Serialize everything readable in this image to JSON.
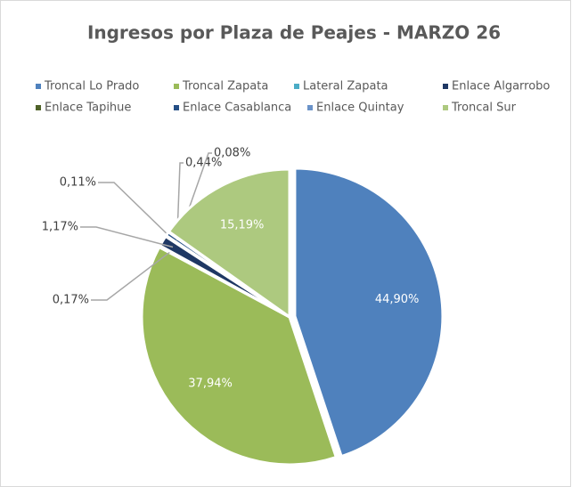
{
  "chart_data": {
    "type": "pie",
    "title": "Ingresos por Plaza de Peajes - MARZO 26",
    "categories": [
      "Troncal Lo Prado",
      "Troncal Zapata",
      "Lateral Zapata",
      "Enlace Algarrobo",
      "Enlace Tapihue",
      "Enlace Casablanca",
      "Enlace Quintay",
      "Troncal Sur"
    ],
    "values": [
      44.9,
      37.94,
      0.17,
      1.17,
      0.11,
      0.44,
      0.08,
      15.19
    ],
    "value_labels": [
      "44,90%",
      "37,94%",
      "0,17%",
      "1,17%",
      "0,11%",
      "0,44%",
      "0,08%",
      "15,19%"
    ],
    "colors": [
      "#4f81bd",
      "#9bbb59",
      "#4bacc6",
      "#1f3864",
      "#4f6228",
      "#254f85",
      "#6b93c9",
      "#adc97f"
    ],
    "legend": "top"
  }
}
